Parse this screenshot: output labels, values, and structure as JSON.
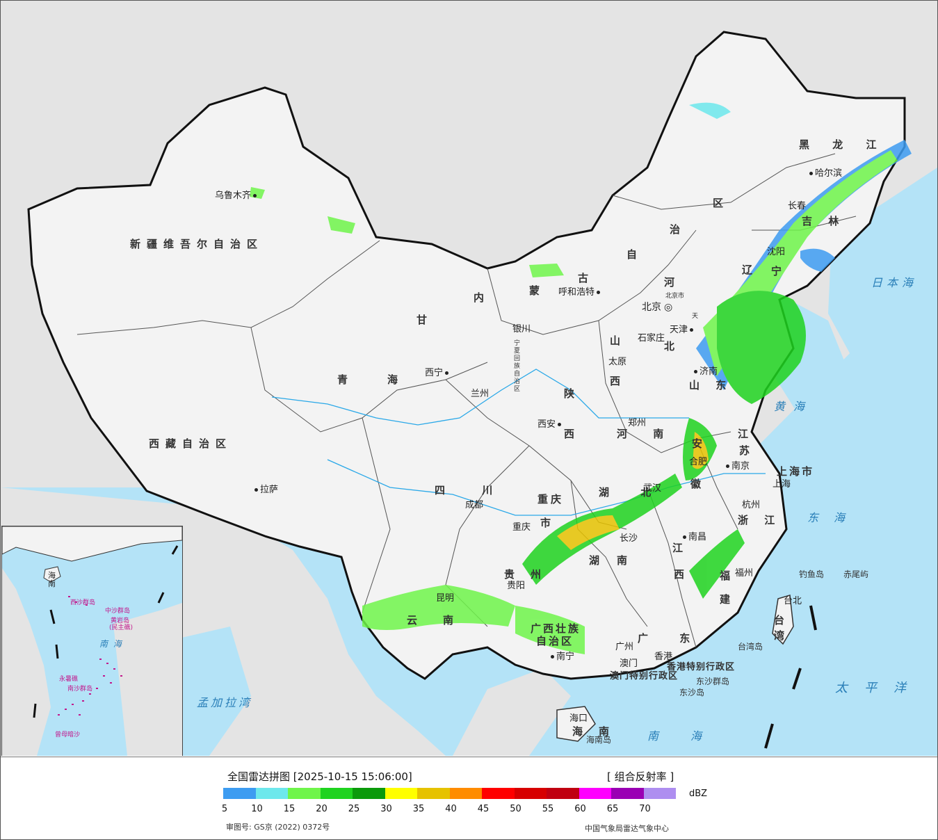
{
  "map": {
    "provinces": [
      {
        "id": "xinjiang",
        "label": "新疆维吾尔自治区"
      },
      {
        "id": "xizang",
        "label": "西藏自治区"
      },
      {
        "id": "qinghai1",
        "label": "青"
      },
      {
        "id": "qinghai2",
        "label": "海"
      },
      {
        "id": "gansu",
        "label": "甘"
      },
      {
        "id": "neimenggu1",
        "label": "内"
      },
      {
        "id": "neimenggu2",
        "label": "蒙"
      },
      {
        "id": "neimenggu3",
        "label": "古"
      },
      {
        "id": "neimenggu4",
        "label": "自"
      },
      {
        "id": "neimenggu5",
        "label": "治"
      },
      {
        "id": "neimenggu6",
        "label": "区"
      },
      {
        "id": "heilongjiang",
        "label": "黑 龙 江"
      },
      {
        "id": "jilin",
        "label": "吉 林"
      },
      {
        "id": "liaoning1",
        "label": "辽"
      },
      {
        "id": "liaoning2",
        "label": "宁"
      },
      {
        "id": "hebei1",
        "label": "河"
      },
      {
        "id": "hebei2",
        "label": "北"
      },
      {
        "id": "shanxi1",
        "label": "山"
      },
      {
        "id": "shanxi2",
        "label": "西"
      },
      {
        "id": "shaanxi1",
        "label": "陕"
      },
      {
        "id": "shaanxi2",
        "label": "西"
      },
      {
        "id": "ningxia",
        "label": "宁夏回族自治区"
      },
      {
        "id": "shandong",
        "label": "山 东"
      },
      {
        "id": "henan",
        "label": "河 南"
      },
      {
        "id": "jiangsu1",
        "label": "江"
      },
      {
        "id": "jiangsu2",
        "label": "苏"
      },
      {
        "id": "anhui1",
        "label": "安"
      },
      {
        "id": "anhui2",
        "label": "徽"
      },
      {
        "id": "shanghai",
        "label": "上海市"
      },
      {
        "id": "zhejiang",
        "label": "浙 江"
      },
      {
        "id": "hubei",
        "label": "湖 北"
      },
      {
        "id": "sichuan",
        "label": "四 川"
      },
      {
        "id": "chongqing1",
        "label": "重庆"
      },
      {
        "id": "chongqing2",
        "label": "市"
      },
      {
        "id": "hunan1",
        "label": "湖"
      },
      {
        "id": "hunan2",
        "label": "南"
      },
      {
        "id": "jiangxi1",
        "label": "江"
      },
      {
        "id": "jiangxi2",
        "label": "西"
      },
      {
        "id": "fujian1",
        "label": "福"
      },
      {
        "id": "fujian2",
        "label": "建"
      },
      {
        "id": "guizhou1",
        "label": "贵"
      },
      {
        "id": "guizhou2",
        "label": "州"
      },
      {
        "id": "yunnan1",
        "label": "云"
      },
      {
        "id": "yunnan2",
        "label": "南"
      },
      {
        "id": "guangxi1",
        "label": "广西壮族"
      },
      {
        "id": "guangxi2",
        "label": "自治区"
      },
      {
        "id": "guangdong",
        "label": "广 东"
      },
      {
        "id": "hainan1",
        "label": "海"
      },
      {
        "id": "hainan2",
        "label": "南"
      },
      {
        "id": "taiwan1",
        "label": "台"
      },
      {
        "id": "taiwan2",
        "label": "湾"
      },
      {
        "id": "hongkong",
        "label": "香港特别行政区"
      },
      {
        "id": "macao",
        "label": "澳门特别行政区"
      }
    ],
    "cities": [
      {
        "id": "urumqi",
        "label": "乌鲁木齐"
      },
      {
        "id": "lhasa",
        "label": "拉萨"
      },
      {
        "id": "xining",
        "label": "西宁"
      },
      {
        "id": "lanzhou",
        "label": "兰州"
      },
      {
        "id": "yinchuan",
        "label": "银川"
      },
      {
        "id": "hohhot",
        "label": "呼和浩特"
      },
      {
        "id": "beijing",
        "label": "北京"
      },
      {
        "id": "beijingshi",
        "label": "北京市"
      },
      {
        "id": "tianjin",
        "label": "天津"
      },
      {
        "id": "tianjinshi",
        "label": "天"
      },
      {
        "id": "shijiazhuang",
        "label": "石家庄"
      },
      {
        "id": "taiyuan",
        "label": "太原"
      },
      {
        "id": "jinan",
        "label": "济南"
      },
      {
        "id": "zhengzhou",
        "label": "郑州"
      },
      {
        "id": "xian",
        "label": "西安"
      },
      {
        "id": "harbin",
        "label": "哈尔滨"
      },
      {
        "id": "changchun",
        "label": "长春"
      },
      {
        "id": "shenyang",
        "label": "沈阳"
      },
      {
        "id": "hefei",
        "label": "合肥"
      },
      {
        "id": "nanjing",
        "label": "南京"
      },
      {
        "id": "shanghaicity",
        "label": "上海"
      },
      {
        "id": "hangzhou",
        "label": "杭州"
      },
      {
        "id": "wuhan",
        "label": "武汉"
      },
      {
        "id": "chengdu",
        "label": "成都"
      },
      {
        "id": "chongqingcity",
        "label": "重庆"
      },
      {
        "id": "changsha",
        "label": "长沙"
      },
      {
        "id": "nanchang",
        "label": "南昌"
      },
      {
        "id": "fuzhou",
        "label": "福州"
      },
      {
        "id": "guiyang",
        "label": "贵阳"
      },
      {
        "id": "kunming",
        "label": "昆明"
      },
      {
        "id": "nanning",
        "label": "南宁"
      },
      {
        "id": "guangzhou",
        "label": "广州"
      },
      {
        "id": "macaocity",
        "label": "澳门"
      },
      {
        "id": "hongkongcity",
        "label": "香港"
      },
      {
        "id": "haikou",
        "label": "海口"
      },
      {
        "id": "taipei",
        "label": "台北"
      }
    ],
    "seas": [
      {
        "id": "japan_sea",
        "label": "日本海"
      },
      {
        "id": "yellow_sea",
        "label": "黄海"
      },
      {
        "id": "east_sea",
        "label": "东海"
      },
      {
        "id": "pacific",
        "label": "太平洋"
      },
      {
        "id": "south_sea",
        "label": "南海"
      },
      {
        "id": "bengal",
        "label": "孟加拉湾"
      }
    ],
    "islands": [
      {
        "id": "diaoyu",
        "label": "钓鱼岛"
      },
      {
        "id": "chiwei",
        "label": "赤尾屿"
      },
      {
        "id": "taiwan_island",
        "label": "台湾岛"
      },
      {
        "id": "dongsha_islands",
        "label": "东沙群岛"
      },
      {
        "id": "dongsha",
        "label": "东沙岛"
      },
      {
        "id": "hainan_island",
        "label": "海南岛"
      }
    ]
  },
  "inset": {
    "labels": [
      {
        "id": "xisha",
        "label": "西沙群岛"
      },
      {
        "id": "zhongsha",
        "label": "中沙群岛"
      },
      {
        "id": "huangyan",
        "label": "黄岩岛"
      },
      {
        "id": "minzhu",
        "label": "(民主礁)"
      },
      {
        "id": "nansha",
        "label": "南沙群岛"
      },
      {
        "id": "yongshu",
        "label": "永暑礁"
      },
      {
        "id": "zengmu",
        "label": "曾母暗沙"
      },
      {
        "id": "hai",
        "label": "海"
      },
      {
        "id": "nan",
        "label": "南"
      },
      {
        "id": "nanhai",
        "label": "南  海"
      }
    ]
  },
  "legend": {
    "title": "全国雷达拼图 [2025-10-15 15:06:00]",
    "product": "[ 组合反射率 ]",
    "unit": "dBZ",
    "colors": [
      "#3d9cf1",
      "#6de8ec",
      "#6ff54a",
      "#1fd31f",
      "#0b9a0b",
      "#ffff00",
      "#e6c200",
      "#ff8c00",
      "#ff0000",
      "#d70000",
      "#c00010",
      "#ff00ff",
      "#9a00b4",
      "#ae8ef0"
    ],
    "ticks": [
      "5",
      "10",
      "15",
      "20",
      "25",
      "30",
      "35",
      "40",
      "45",
      "50",
      "55",
      "60",
      "65",
      "70"
    ],
    "review": "审图号: GS京 (2022) 0372号",
    "credit": "中国气象局雷达气象中心"
  }
}
